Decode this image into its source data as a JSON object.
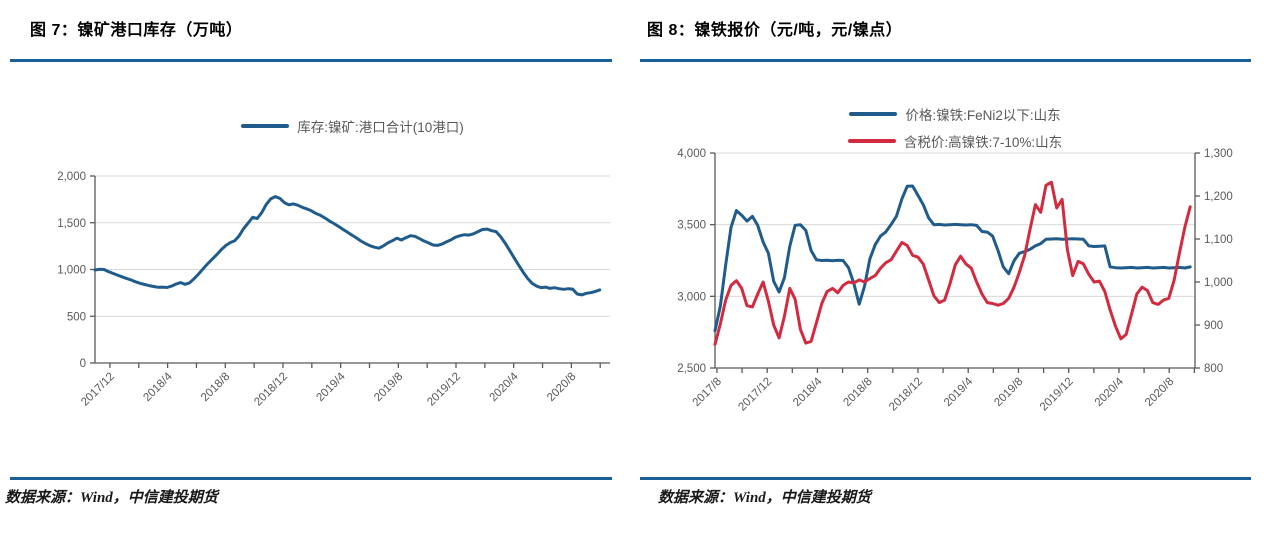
{
  "panels": [
    {
      "title": "图 7：镍矿港口库存（万吨）",
      "source": "数据来源：Wind，中信建投期货"
    },
    {
      "title": "图 8：镍铁报价（元/吨，元/镍点）",
      "source": "数据来源：Wind，中信建投期货"
    }
  ],
  "colors": {
    "line_blue": "#1F5C8B",
    "line_red": "#D22B3F",
    "divider_blue": "#1A5F96",
    "grid": "#D9D9D9",
    "axis": "#595959",
    "tick_text": "#595959"
  },
  "chart_data": [
    {
      "type": "line",
      "title": "图 7：镍矿港口库存（万吨）",
      "unit": "万吨",
      "grid": true,
      "legend_position": "top-center",
      "x_labels": [
        "2017/12",
        "2018/4",
        "2018/8",
        "2018/12",
        "2019/4",
        "2019/8",
        "2019/12",
        "2020/4",
        "2020/8"
      ],
      "y_axis": {
        "min": 0,
        "max": 2000,
        "step": 500,
        "tick_labels": [
          "0",
          "500",
          "1,000",
          "1,500",
          "2,000"
        ]
      },
      "series": [
        {
          "name": "库存:镍矿:港口合计(10港口)",
          "color": "#1F5C8B",
          "axis": "y",
          "values": [
            995,
            1002,
            1000,
            978,
            958,
            940,
            922,
            905,
            888,
            868,
            852,
            840,
            828,
            818,
            810,
            812,
            808,
            822,
            845,
            860,
            842,
            858,
            902,
            952,
            1008,
            1062,
            1110,
            1158,
            1212,
            1256,
            1288,
            1308,
            1362,
            1438,
            1498,
            1558,
            1545,
            1608,
            1695,
            1755,
            1780,
            1762,
            1715,
            1692,
            1702,
            1688,
            1665,
            1648,
            1628,
            1600,
            1580,
            1552,
            1520,
            1492,
            1462,
            1430,
            1400,
            1368,
            1338,
            1305,
            1278,
            1255,
            1238,
            1228,
            1252,
            1285,
            1308,
            1335,
            1315,
            1340,
            1362,
            1355,
            1330,
            1305,
            1285,
            1262,
            1258,
            1272,
            1295,
            1318,
            1345,
            1362,
            1372,
            1368,
            1382,
            1405,
            1428,
            1432,
            1415,
            1405,
            1352,
            1282,
            1205,
            1125,
            1048,
            972,
            905,
            852,
            822,
            805,
            812,
            798,
            805,
            795,
            788,
            795,
            790,
            738,
            728,
            745,
            752,
            765,
            782
          ]
        }
      ]
    },
    {
      "type": "line",
      "title": "图 8：镍铁报价（元/吨，元/镍点）",
      "unit": "元/吨，元/镍点",
      "grid": true,
      "legend_position": "top-center",
      "x_labels": [
        "2017/8",
        "2017/12",
        "2018/4",
        "2018/8",
        "2018/12",
        "2019/4",
        "2019/8",
        "2019/12",
        "2020/4",
        "2020/8"
      ],
      "y_axis": {
        "min": 2500,
        "max": 4000,
        "step": 500,
        "tick_labels": [
          "2,500",
          "3,000",
          "3,500",
          "4,000"
        ]
      },
      "y2_axis": {
        "min": 800,
        "max": 1300,
        "step": 100,
        "tick_labels": [
          "800",
          "900",
          "1,000",
          "1,100",
          "1,200",
          "1,300"
        ]
      },
      "series": [
        {
          "name": "价格:镍铁:FeNi2以下:山东",
          "color": "#1F5C8B",
          "axis": "y",
          "values": [
            2760,
            2930,
            3220,
            3480,
            3598,
            3565,
            3525,
            3558,
            3495,
            3380,
            3300,
            3105,
            3030,
            3130,
            3350,
            3495,
            3500,
            3460,
            3320,
            3255,
            3250,
            3252,
            3248,
            3252,
            3250,
            3200,
            3090,
            2945,
            3070,
            3260,
            3360,
            3420,
            3450,
            3502,
            3560,
            3680,
            3768,
            3770,
            3705,
            3640,
            3548,
            3500,
            3502,
            3498,
            3500,
            3502,
            3500,
            3498,
            3500,
            3495,
            3452,
            3448,
            3420,
            3320,
            3205,
            3158,
            3248,
            3300,
            3312,
            3328,
            3352,
            3368,
            3398,
            3400,
            3402,
            3398,
            3400,
            3402,
            3400,
            3398,
            3352,
            3348,
            3350,
            3352,
            3205,
            3200,
            3198,
            3200,
            3202,
            3198,
            3200,
            3202,
            3198,
            3200,
            3202,
            3198,
            3200,
            3202,
            3198,
            3205
          ]
        },
        {
          "name": "含税价:高镍铁:7-10%:山东",
          "color": "#D22B3F",
          "axis": "y2",
          "values": [
            855,
            902,
            958,
            992,
            1003,
            985,
            945,
            942,
            972,
            1000,
            955,
            900,
            870,
            920,
            985,
            960,
            890,
            858,
            862,
            905,
            950,
            978,
            985,
            975,
            992,
            1000,
            998,
            1005,
            1000,
            1008,
            1015,
            1032,
            1045,
            1052,
            1072,
            1092,
            1085,
            1062,
            1058,
            1042,
            1005,
            968,
            952,
            958,
            995,
            1040,
            1060,
            1042,
            1032,
            1000,
            972,
            952,
            950,
            946,
            950,
            962,
            988,
            1022,
            1062,
            1122,
            1180,
            1162,
            1225,
            1232,
            1172,
            1192,
            1075,
            1015,
            1048,
            1042,
            1018,
            1000,
            1002,
            978,
            935,
            898,
            868,
            878,
            925,
            972,
            988,
            980,
            952,
            948,
            958,
            962,
            1005,
            1068,
            1128,
            1175
          ]
        }
      ]
    }
  ]
}
